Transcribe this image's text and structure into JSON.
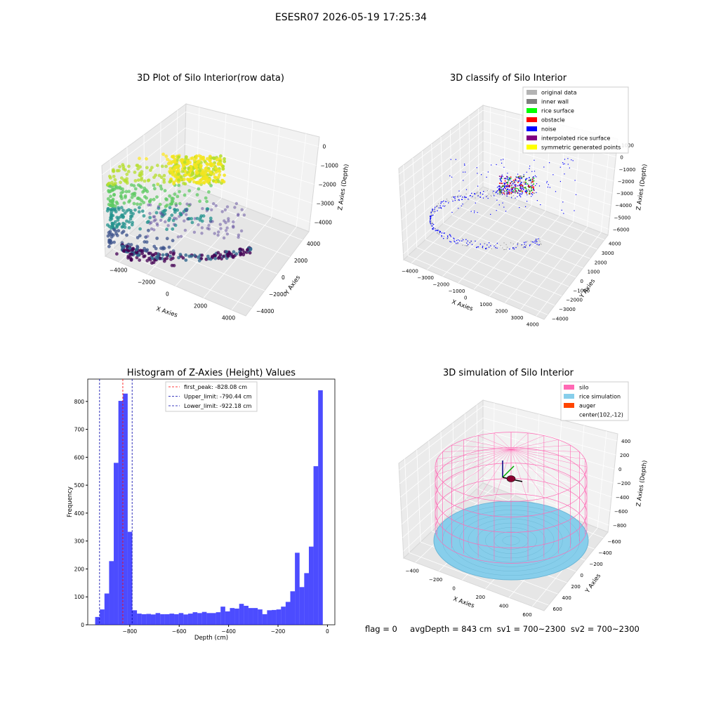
{
  "window_title": "ESESR07 2026-05-19 17:25:34",
  "panels": {
    "raw": {
      "title": "3D Plot of Silo Interior(row data)",
      "xlabel": "X Axies",
      "ylabel": "Y Axies",
      "zlabel": "Z Axies (Depth)",
      "xticks": [
        "−4000",
        "−2000",
        "0",
        "2000",
        "4000"
      ],
      "yticks": [
        "−4000",
        "−2000",
        "0",
        "2000",
        "4000"
      ],
      "zticks": [
        "0",
        "−1000",
        "−2000",
        "−3000",
        "−4000"
      ]
    },
    "classify": {
      "title": "3D classify of Silo Interior",
      "xlabel": "X Axies",
      "ylabel": "Y Axies",
      "zlabel": "Z Axies (Depth)",
      "xticks": [
        "−4000",
        "−3000",
        "−2000",
        "−1000",
        "0",
        "1000",
        "2000",
        "3000",
        "4000"
      ],
      "yticks": [
        "−4000",
        "−3000",
        "−2000",
        "−1000",
        "0",
        "1000",
        "2000",
        "3000",
        "4000"
      ],
      "zticks": [
        "1000",
        "0",
        "−1000",
        "−2000",
        "−3000",
        "−4000",
        "−5000",
        "−6000"
      ],
      "legend": [
        {
          "label": "original data",
          "color": "#b3b3b3"
        },
        {
          "label": "inner wall",
          "color": "#808080"
        },
        {
          "label": "rice surface",
          "color": "#00ff00"
        },
        {
          "label": "obstacle",
          "color": "#ff0000"
        },
        {
          "label": "noise",
          "color": "#0000ff"
        },
        {
          "label": "interpolated rice surface",
          "color": "#800080"
        },
        {
          "label": "symmetric generated points",
          "color": "#ffff00"
        }
      ]
    },
    "simulation": {
      "title": "3D simulation of Silo Interior",
      "xlabel": "X Axies",
      "ylabel": "Y Axies",
      "zlabel": "Z Axies (Depth)",
      "xticks": [
        "−400",
        "−200",
        "0",
        "200",
        "400",
        "600"
      ],
      "yticks": [
        "600",
        "400",
        "200",
        "0",
        "−200",
        "−400",
        "−600"
      ],
      "zticks": [
        "400",
        "200",
        "0",
        "−200",
        "−400",
        "−600",
        "−800"
      ],
      "legend": [
        {
          "label": "silo",
          "color": "#ff69b4"
        },
        {
          "label": "rice simulation",
          "color": "#87ceeb"
        },
        {
          "label": "auger",
          "color": "#ff4500"
        },
        {
          "label": "center(102,-12)",
          "color": ""
        }
      ]
    }
  },
  "chart_data": {
    "type": "bar",
    "title": "Histogram of Z-Axies (Height) Values",
    "xlabel": "Depth (cm)",
    "ylabel": "Frequency",
    "xlim": [
      -970,
      30
    ],
    "ylim": [
      0,
      880
    ],
    "xticks": [
      -800,
      -600,
      -400,
      -200,
      0
    ],
    "yticks": [
      0,
      100,
      200,
      300,
      400,
      500,
      600,
      700,
      800
    ],
    "bin_start": -940,
    "bin_width": 18.8,
    "values": [
      28,
      55,
      112,
      228,
      580,
      802,
      828,
      333,
      52,
      40,
      38,
      39,
      37,
      42,
      38,
      38,
      40,
      38,
      42,
      37,
      40,
      45,
      42,
      46,
      42,
      42,
      45,
      65,
      48,
      60,
      58,
      75,
      68,
      60,
      60,
      55,
      38,
      52,
      53,
      55,
      65,
      82,
      120,
      258,
      135,
      185,
      280,
      568,
      840
    ],
    "color": "#0000ff",
    "vlines": [
      {
        "label": "first_peak: -828.08 cm",
        "x": -828.08,
        "color": "#ff0000"
      },
      {
        "label": "Upper_limit: -790.44 cm",
        "x": -790.44,
        "color": "#0000aa"
      },
      {
        "label": "Lower_limit: -922.18 cm",
        "x": -922.18,
        "color": "#0000aa"
      }
    ],
    "legend_position": "upper-center"
  },
  "footer": {
    "flag": "flag = 0",
    "avg_depth": "avgDepth = 843 cm",
    "sv1": "sv1 = 700~2300",
    "sv2": "sv2 = 700~2300"
  }
}
